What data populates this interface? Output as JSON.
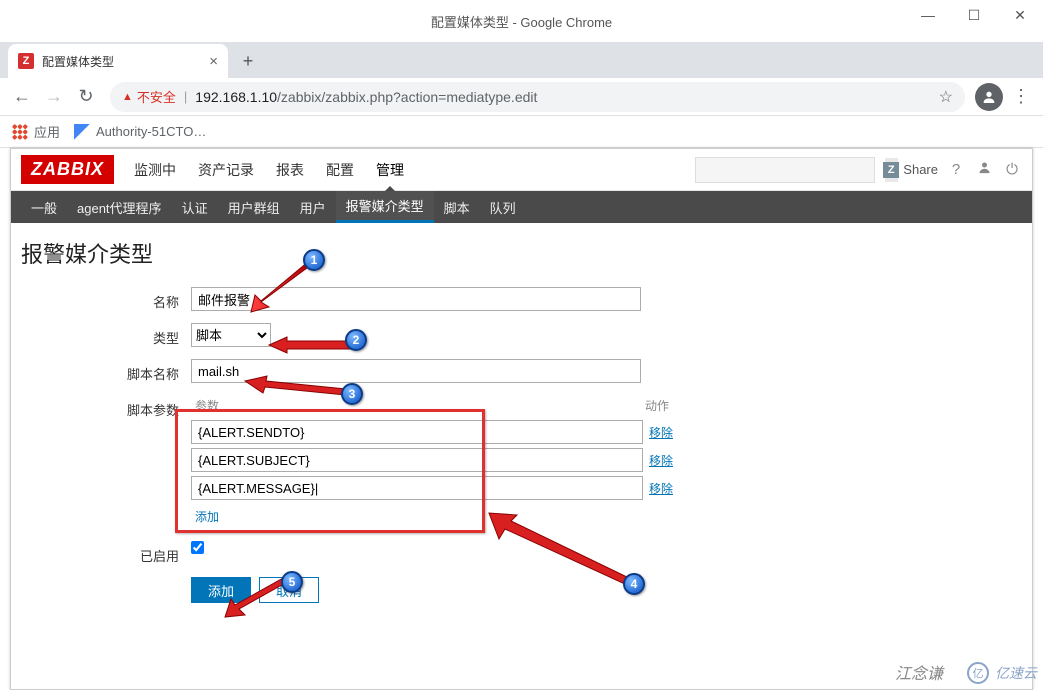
{
  "window": {
    "title": "配置媒体类型 - Google Chrome",
    "minimize": "—",
    "maximize": "☐",
    "close": "✕"
  },
  "tab": {
    "favicon_letter": "Z",
    "title": "配置媒体类型",
    "close": "×",
    "newtab": "+"
  },
  "addressbar": {
    "back": "←",
    "forward": "→",
    "reload": "↻",
    "insecure_icon": "▲",
    "insecure_text": "不安全",
    "url_host": "192.168.1.10",
    "url_path": "/zabbix/zabbix.php?action=mediatype.edit",
    "star": "☆",
    "menu": "⋮"
  },
  "bookmarks": {
    "apps": "应用",
    "item1": "Authority-51CTO…"
  },
  "zabbix": {
    "logo": "ZABBIX",
    "mainnav": [
      "监测中",
      "资产记录",
      "报表",
      "配置",
      "管理"
    ],
    "mainnav_active": 4,
    "search_placeholder": "",
    "share": "Share",
    "help": "?",
    "user": "👤",
    "power": "⏻",
    "subnav": [
      "一般",
      "agent代理程序",
      "认证",
      "用户群组",
      "用户",
      "报警媒介类型",
      "脚本",
      "队列"
    ],
    "subnav_active": 5,
    "page_title": "报警媒介类型"
  },
  "form": {
    "name_label": "名称",
    "name_value": "邮件报警",
    "type_label": "类型",
    "type_value": "脚本",
    "script_label": "脚本名称",
    "script_value": "mail.sh",
    "params_label": "脚本参数",
    "params_header_col1": "参数",
    "params_header_col2": "动作",
    "params": [
      {
        "value": "{ALERT.SENDTO}",
        "remove": "移除"
      },
      {
        "value": "{ALERT.SUBJECT}",
        "remove": "移除"
      },
      {
        "value": "{ALERT.MESSAGE}|",
        "remove": "移除"
      }
    ],
    "params_add": "添加",
    "enabled_label": "已启用",
    "enabled_checked": true,
    "submit": "添加",
    "cancel": "取消"
  },
  "callouts": {
    "c1": "1",
    "c2": "2",
    "c3": "3",
    "c4": "4",
    "c5": "5"
  },
  "watermark": {
    "text": "亿速云",
    "logo": "亿"
  },
  "signature": "江念谦"
}
